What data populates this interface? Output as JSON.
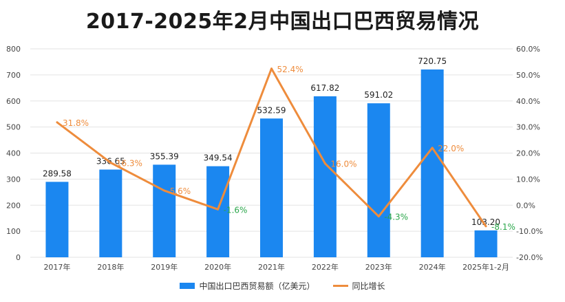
{
  "chart_data": {
    "type": "bar",
    "title": "2017-2025年2月中国出口巴西贸易情况",
    "categories": [
      "2017年",
      "2018年",
      "2019年",
      "2020年",
      "2021年",
      "2022年",
      "2023年",
      "2024年",
      "2025年1-2月"
    ],
    "series": [
      {
        "name": "中国出口巴西贸易额（亿美元）",
        "type": "bar",
        "axis": "left",
        "values": [
          289.58,
          336.65,
          355.39,
          349.54,
          532.59,
          617.82,
          591.02,
          720.75,
          103.2
        ],
        "labels": [
          "289.58",
          "336.65",
          "355.39",
          "349.54",
          "532.59",
          "617.82",
          "591.02",
          "720.75",
          "103.20"
        ]
      },
      {
        "name": "同比增长",
        "type": "line",
        "axis": "right",
        "values": [
          31.8,
          16.3,
          5.6,
          -1.6,
          52.4,
          16.0,
          -4.3,
          22.0,
          -8.1
        ],
        "labels": [
          "31.8%",
          "16.3%",
          "5.6%",
          "-1.6%",
          "52.4%",
          "16.0%",
          "-4.3%",
          "22.0%",
          "-8.1%"
        ]
      }
    ],
    "y_left": {
      "range": [
        0,
        800
      ],
      "ticks": [
        "0",
        "100",
        "200",
        "300",
        "400",
        "500",
        "600",
        "700",
        "800"
      ]
    },
    "y_right": {
      "range": [
        -20,
        60
      ],
      "ticks": [
        "-20.0%",
        "-10.0%",
        "0.0%",
        "10.0%",
        "20.0%",
        "30.0%",
        "40.0%",
        "50.0%",
        "60.0%"
      ]
    },
    "grid": true,
    "legend_position": "bottom",
    "colors": {
      "bar": "#1b87f0",
      "line": "#ee8c3c",
      "label_positive": "#ee8c3c",
      "label_negative": "#2aa64a",
      "bar_label": "#222222",
      "axis_text": "#444444",
      "grid": "#e3e3e3"
    }
  }
}
